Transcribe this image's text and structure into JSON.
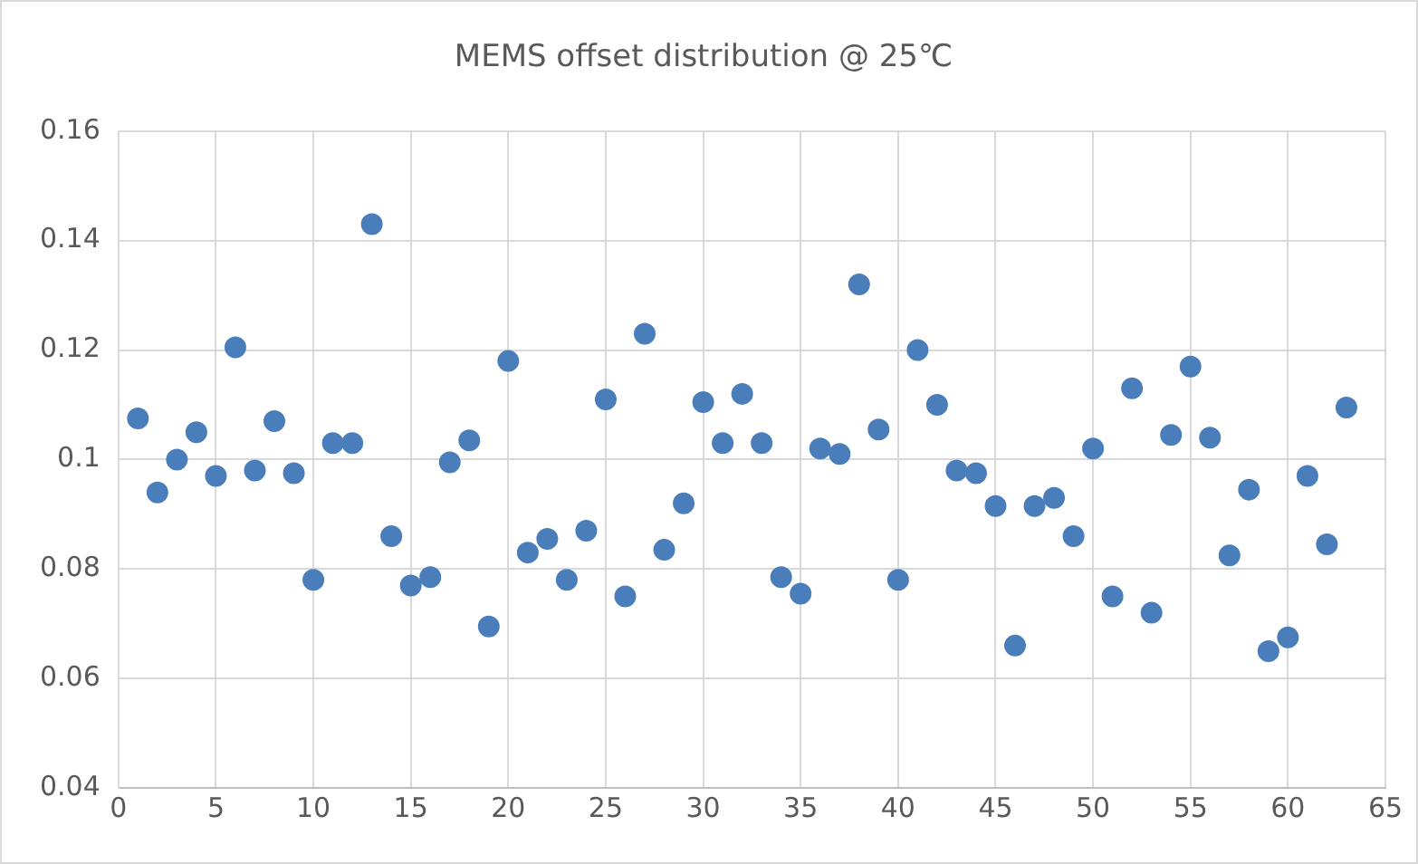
{
  "chart_data": {
    "type": "scatter",
    "title": "MEMS offset distribution @ 25℃",
    "x": [
      1,
      2,
      3,
      4,
      5,
      6,
      7,
      8,
      9,
      10,
      11,
      12,
      13,
      14,
      15,
      16,
      17,
      18,
      19,
      20,
      21,
      22,
      23,
      24,
      25,
      26,
      27,
      28,
      29,
      30,
      31,
      32,
      33,
      34,
      35,
      36,
      37,
      38,
      39,
      40,
      41,
      42,
      43,
      44,
      45,
      46,
      47,
      48,
      49,
      50,
      51,
      52,
      53,
      54,
      55,
      56,
      57,
      58,
      59,
      60,
      61,
      62,
      63
    ],
    "series": [
      {
        "color": "#4a7ebb",
        "values": [
          0.1075,
          0.094,
          0.1,
          0.105,
          0.097,
          0.1205,
          0.098,
          0.107,
          0.0975,
          0.078,
          0.103,
          0.103,
          0.143,
          0.086,
          0.077,
          0.0785,
          0.0995,
          0.1035,
          0.0695,
          0.118,
          0.083,
          0.0855,
          0.078,
          0.087,
          0.111,
          0.075,
          0.123,
          0.0835,
          0.092,
          0.1105,
          0.103,
          0.112,
          0.103,
          0.0785,
          0.0755,
          0.102,
          0.101,
          0.132,
          0.1055,
          0.078,
          0.12,
          0.11,
          0.098,
          0.0975,
          0.0915,
          0.066,
          0.0915,
          0.093,
          0.086,
          0.102,
          0.075,
          0.113,
          0.072,
          0.1045,
          0.117,
          0.104,
          0.0825,
          0.0945,
          0.065,
          0.0675,
          0.097,
          0.0845,
          0.1095
        ]
      }
    ],
    "xlim": [
      0,
      65
    ],
    "xticks": [
      0,
      5,
      10,
      15,
      20,
      25,
      30,
      35,
      40,
      45,
      50,
      55,
      60,
      65
    ],
    "ylim": [
      0.04,
      0.16
    ],
    "yticks": [
      {
        "value": 0.04,
        "label": "0.04"
      },
      {
        "value": 0.06,
        "label": "0.06"
      },
      {
        "value": 0.08,
        "label": "0.08"
      },
      {
        "value": 0.1,
        "label": "0.1"
      },
      {
        "value": 0.12,
        "label": "0.12"
      },
      {
        "value": 0.14,
        "label": "0.14"
      },
      {
        "value": 0.16,
        "label": "0.16"
      }
    ],
    "grid": true,
    "marker": "circle",
    "legend": false
  }
}
